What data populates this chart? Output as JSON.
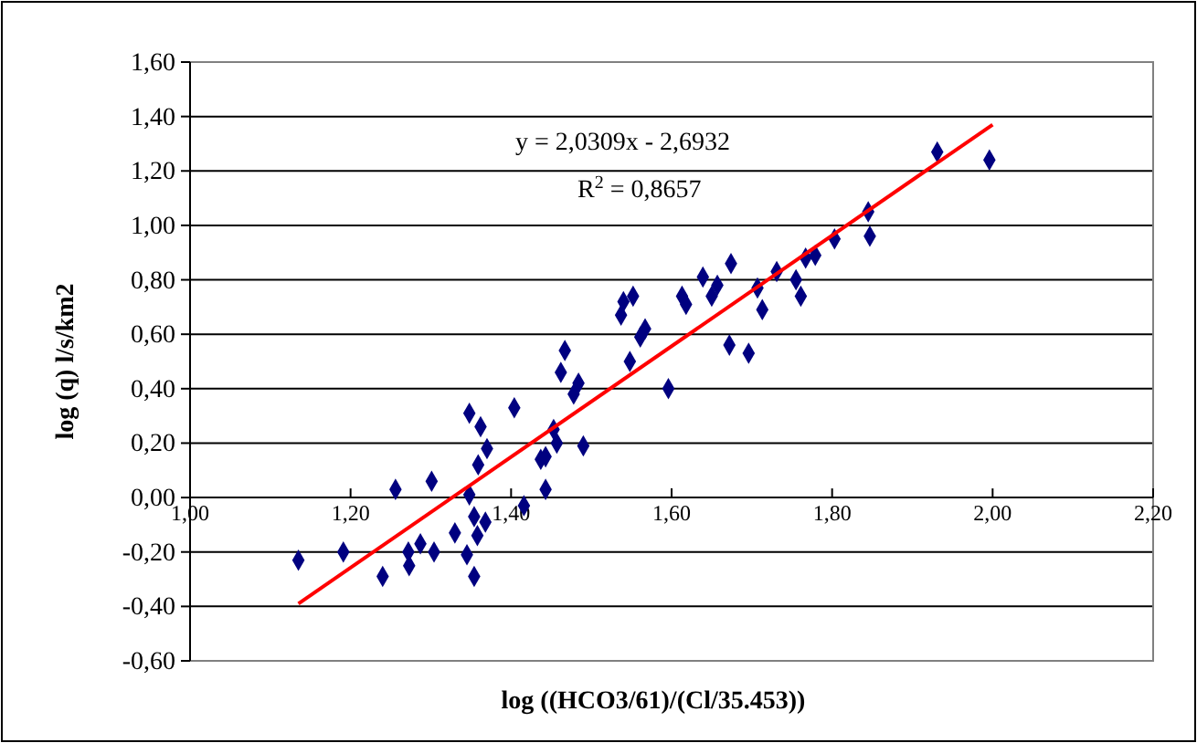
{
  "chart_data": {
    "type": "scatter",
    "xlabel": "log ((HCO3/61)/(Cl/35.453))",
    "ylabel": "log (q) l/s/km2",
    "annotations": [
      "y = 2,0309x - 2,6932",
      "R$^{2}$ = 0,8657"
    ],
    "xlim": [
      1.0,
      2.2
    ],
    "ylim": [
      -0.6,
      1.6
    ],
    "xticks": [
      {
        "value": 1.0,
        "label": "1,00"
      },
      {
        "value": 1.2,
        "label": "1,20"
      },
      {
        "value": 1.4,
        "label": "1,40"
      },
      {
        "value": 1.6,
        "label": "1,60"
      },
      {
        "value": 1.8,
        "label": "1,80"
      },
      {
        "value": 2.0,
        "label": "2,00"
      },
      {
        "value": 2.2,
        "label": "2,20"
      }
    ],
    "yticks": [
      {
        "value": -0.6,
        "label": "-0,60"
      },
      {
        "value": -0.4,
        "label": "-0,40"
      },
      {
        "value": -0.2,
        "label": "-0,20"
      },
      {
        "value": 0,
        "label": "0,00"
      },
      {
        "value": 0.2,
        "label": "0,20"
      },
      {
        "value": 0.4,
        "label": "0,40"
      },
      {
        "value": 0.6,
        "label": "0,60"
      },
      {
        "value": 0.8,
        "label": "0,80"
      },
      {
        "value": 1.0,
        "label": "1,00"
      },
      {
        "value": 1.2,
        "label": "1,20"
      },
      {
        "value": 1.4,
        "label": "1,40"
      },
      {
        "value": 1.6,
        "label": "1,60"
      }
    ],
    "grid": "y",
    "series": [
      {
        "color": "#000080",
        "marker": "diamond",
        "x": [
          1.135,
          1.191,
          1.24,
          1.256,
          1.272,
          1.273,
          1.287,
          1.301,
          1.304,
          1.33,
          1.345,
          1.348,
          1.348,
          1.354,
          1.354,
          1.358,
          1.359,
          1.362,
          1.368,
          1.37,
          1.404,
          1.416,
          1.437,
          1.443,
          1.443,
          1.453,
          1.457,
          1.462,
          1.467,
          1.478,
          1.484,
          1.49,
          1.537,
          1.54,
          1.552,
          1.548,
          1.561,
          1.567,
          1.596,
          1.613,
          1.618,
          1.639,
          1.65,
          1.657,
          1.674,
          1.672,
          1.696,
          1.707,
          1.713,
          1.731,
          1.755,
          1.761,
          1.767,
          1.779,
          1.803,
          1.845,
          1.847,
          1.931,
          1.996
        ],
        "values": [
          -0.23,
          -0.2,
          -0.29,
          0.03,
          -0.2,
          -0.25,
          -0.17,
          0.06,
          -0.2,
          -0.13,
          -0.21,
          0.31,
          0.01,
          -0.07,
          -0.29,
          -0.14,
          0.12,
          0.26,
          -0.09,
          0.18,
          0.33,
          -0.03,
          0.14,
          0.15,
          0.03,
          0.25,
          0.2,
          0.46,
          0.54,
          0.38,
          0.42,
          0.19,
          0.67,
          0.72,
          0.74,
          0.5,
          0.59,
          0.62,
          0.4,
          0.74,
          0.71,
          0.81,
          0.74,
          0.78,
          0.86,
          0.56,
          0.53,
          0.77,
          0.69,
          0.83,
          0.8,
          0.74,
          0.88,
          0.89,
          0.95,
          1.05,
          0.96,
          1.27,
          1.24
        ]
      },
      {
        "type": "line",
        "color": "#ff0000",
        "line_style": "solid",
        "x": [
          1.135,
          2.0
        ],
        "values": [
          -0.39,
          1.37
        ]
      }
    ]
  }
}
